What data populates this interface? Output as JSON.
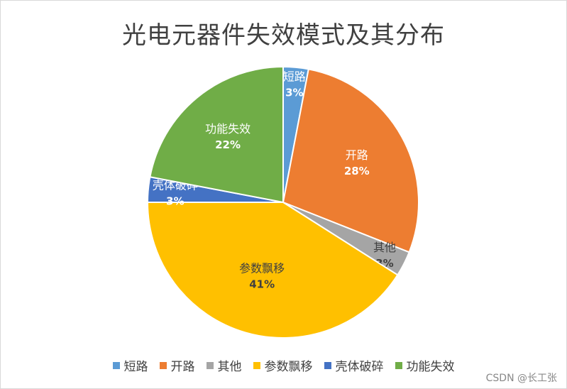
{
  "chart_data": {
    "type": "pie",
    "title": "光电元器件失效模式及其分布",
    "categories": [
      "短路",
      "开路",
      "其他",
      "参数飘移",
      "壳体破碎",
      "功能失效"
    ],
    "values": [
      3,
      28,
      3,
      41,
      3,
      22
    ],
    "value_labels": [
      "3%",
      "28%",
      "3%",
      "41%",
      "3%",
      "22%"
    ],
    "colors": [
      "#5b9bd5",
      "#ed7d31",
      "#a5a5a5",
      "#ffc000",
      "#4472c4",
      "#70ad47"
    ],
    "legend_position": "bottom"
  },
  "watermark": "CSDN @长工张"
}
